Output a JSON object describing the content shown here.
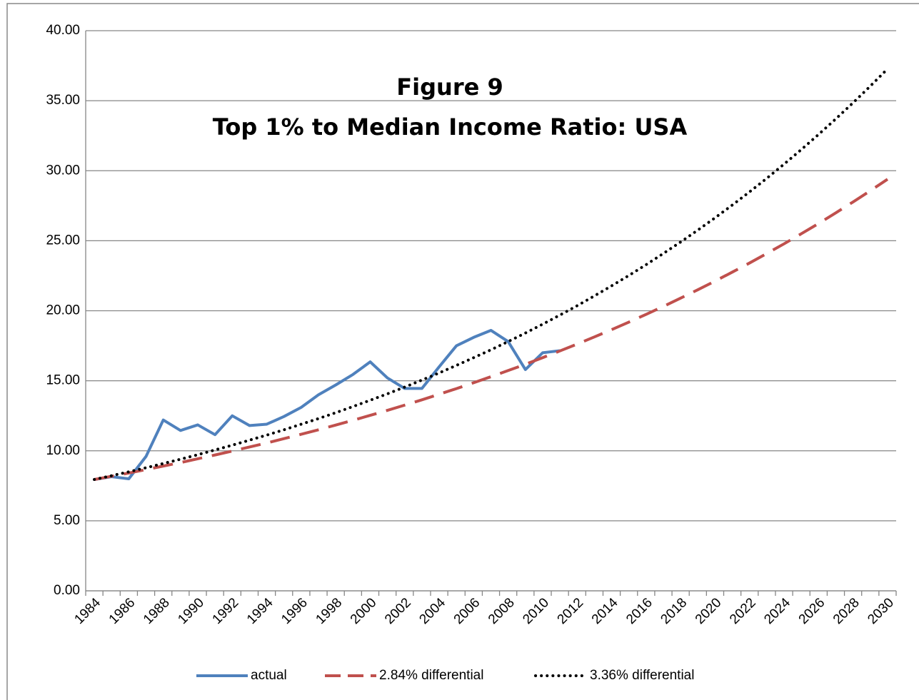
{
  "chart_data": {
    "type": "line",
    "title": "Figure 9",
    "subtitle": "Top 1% to Median Income Ratio: USA",
    "categories": [
      "1984",
      null,
      "1986",
      null,
      "1988",
      null,
      "1990",
      null,
      "1992",
      null,
      "1994",
      null,
      "1996",
      null,
      "1998",
      null,
      "2000",
      null,
      "2002",
      null,
      "2004",
      null,
      "2006",
      null,
      "2008",
      null,
      "2010",
      null,
      "2012",
      null,
      "2014",
      null,
      "2016",
      null,
      "2018",
      null,
      "2020",
      null,
      "2022",
      null,
      "2024",
      null,
      "2026",
      null,
      "2028",
      null,
      "2030"
    ],
    "series": [
      {
        "name": "actual",
        "color": "#4f81bd",
        "style": "solid",
        "values": [
          7.95,
          8.15,
          8.0,
          9.6,
          12.2,
          11.45,
          11.85,
          11.15,
          12.5,
          11.8,
          11.9,
          12.45,
          13.1,
          14.0,
          14.7,
          15.45,
          16.35,
          15.2,
          14.45,
          14.45,
          16.0,
          17.5,
          18.1,
          18.6,
          17.8,
          15.8,
          17.0,
          17.15,
          null,
          null,
          null,
          null,
          null,
          null,
          null,
          null,
          null,
          null,
          null,
          null,
          null,
          null,
          null,
          null,
          null,
          null,
          null
        ]
      },
      {
        "name": "2.84% differential",
        "color": "#c0504d",
        "style": "dashed",
        "values": [
          7.95,
          8.18,
          8.41,
          8.66,
          8.91,
          9.16,
          9.43,
          9.7,
          9.98,
          10.27,
          10.56,
          10.87,
          11.18,
          11.5,
          11.84,
          12.18,
          12.53,
          12.89,
          13.26,
          13.64,
          14.04,
          14.44,
          14.86,
          15.29,
          15.73,
          16.18,
          16.65,
          17.13,
          17.62,
          18.13,
          18.65,
          19.19,
          19.74,
          20.31,
          20.9,
          21.5,
          22.12,
          22.76,
          23.41,
          24.09,
          24.78,
          25.5,
          26.23,
          26.99,
          27.77,
          28.57,
          29.39
        ]
      },
      {
        "name": "3.36% differential",
        "color": "#000000",
        "style": "dotted",
        "values": [
          7.95,
          8.22,
          8.5,
          8.79,
          9.09,
          9.4,
          9.72,
          10.06,
          10.4,
          10.76,
          11.12,
          11.5,
          11.9,
          12.3,
          12.72,
          13.16,
          13.61,
          14.07,
          14.55,
          15.05,
          15.56,
          16.1,
          16.65,
          17.21,
          17.8,
          18.41,
          19.04,
          19.69,
          20.36,
          21.06,
          21.78,
          22.52,
          23.29,
          24.09,
          24.91,
          25.76,
          26.64,
          27.55,
          28.49,
          29.46,
          30.47,
          31.51,
          32.59,
          33.7,
          34.85,
          36.04,
          37.27
        ]
      }
    ],
    "ylim": [
      0,
      40
    ],
    "yticks": [
      {
        "value": 0,
        "label": "0.00"
      },
      {
        "value": 5,
        "label": "5.00"
      },
      {
        "value": 10,
        "label": "10.00"
      },
      {
        "value": 15,
        "label": "15.00"
      },
      {
        "value": 20,
        "label": "20.00"
      },
      {
        "value": 25,
        "label": "25.00"
      },
      {
        "value": 30,
        "label": "30.00"
      },
      {
        "value": 35,
        "label": "35.00"
      },
      {
        "value": 40,
        "label": "40.00"
      }
    ],
    "grid": true,
    "legend": "bottom"
  }
}
